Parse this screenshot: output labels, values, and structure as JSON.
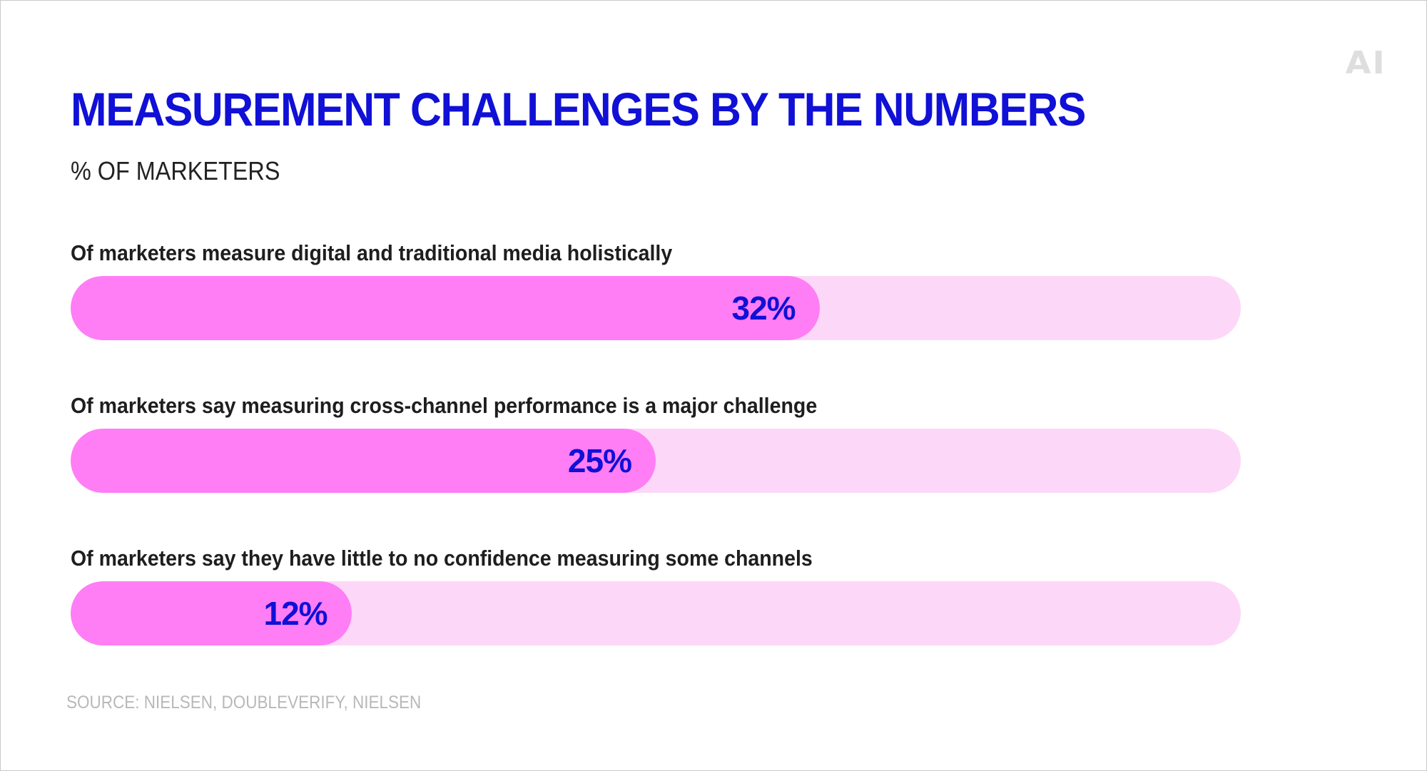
{
  "logo_text": "AI",
  "chart_data": {
    "type": "bar",
    "orientation": "horizontal",
    "title": "MEASUREMENT CHALLENGES BY THE NUMBERS",
    "subtitle": "% OF MARKETERS",
    "categories": [
      "Of marketers measure digital and traditional media holistically",
      "Of marketers say measuring cross-channel performance is a major challenge",
      "Of marketers say they have little to no confidence measuring some channels"
    ],
    "values": [
      32,
      25,
      12
    ],
    "value_labels": [
      "32%",
      "25%",
      "12%"
    ],
    "xlim": [
      0,
      50
    ],
    "grid": false,
    "colors": {
      "fill": "#ff7ef5",
      "track": "#fdd7f8",
      "value_text": "#1010d6",
      "title": "#1010d6"
    }
  },
  "source": "SOURCE: NIELSEN, DOUBLEVERIFY, NIELSEN"
}
